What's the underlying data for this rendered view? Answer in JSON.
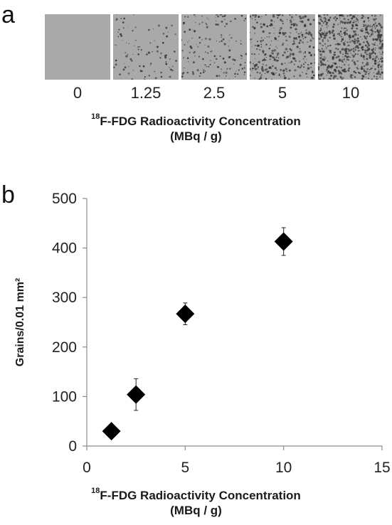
{
  "panel_a": {
    "letter": "a",
    "concentration_labels": [
      "0",
      "1.25",
      "2.5",
      "5",
      "10"
    ],
    "xlabel_sup": "18",
    "xlabel_main": "F-FDG Radioactivity Concentration",
    "xlabel_unit": "(MBq / g)",
    "tile_background": "#a9a9a9",
    "grain_color": "#3a3a3a"
  },
  "panel_b": {
    "letter": "b",
    "xlabel_sup": "18",
    "xlabel_main": "F-FDG Radioactivity Concentration",
    "xlabel_unit": "(MBq / g)"
  },
  "chart_data": {
    "type": "scatter",
    "marker": "diamond",
    "marker_color": "#000000",
    "x": [
      1.25,
      2.5,
      5,
      10
    ],
    "y": [
      30,
      104,
      267,
      413
    ],
    "y_error": [
      8,
      32,
      22,
      28
    ],
    "xlabel": "18F-FDG Radioactivity Concentration (MBq / g)",
    "ylabel": "Grains/0.01 mm²",
    "xlim": [
      0,
      15
    ],
    "ylim": [
      0,
      500
    ],
    "xticks": [
      "0",
      "5",
      "10",
      "15"
    ],
    "yticks": [
      "0",
      "100",
      "200",
      "300",
      "400",
      "500"
    ],
    "grid": false,
    "legend": "none"
  }
}
